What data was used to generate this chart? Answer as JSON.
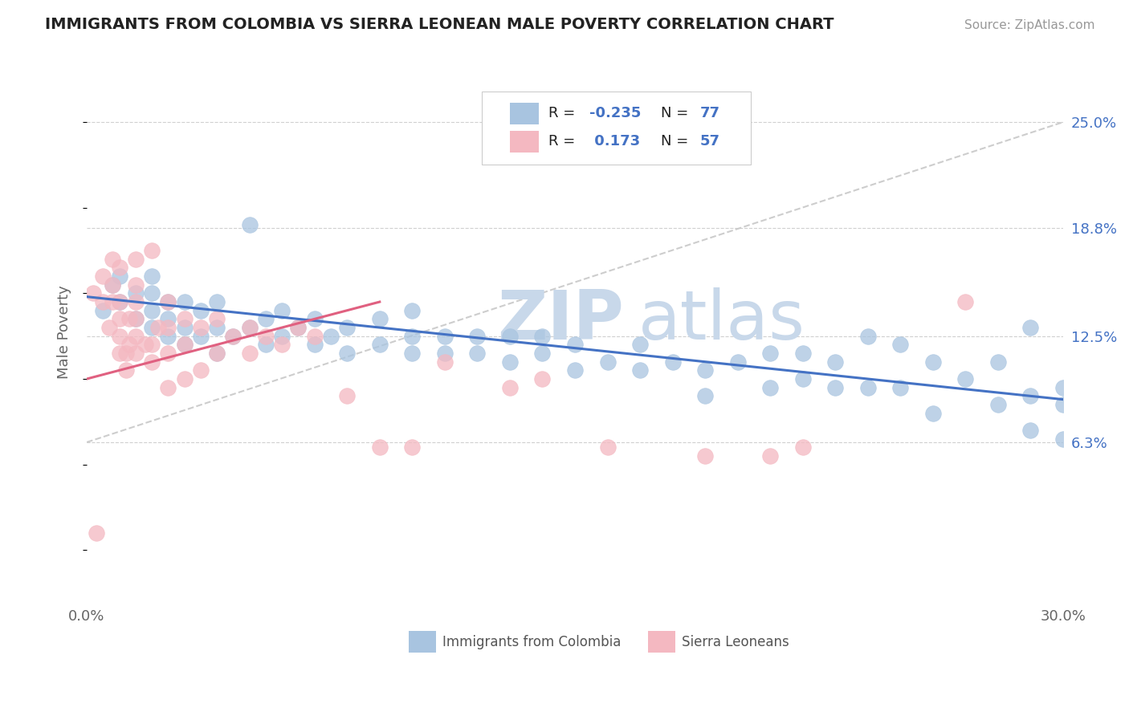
{
  "title": "IMMIGRANTS FROM COLOMBIA VS SIERRA LEONEAN MALE POVERTY CORRELATION CHART",
  "source": "Source: ZipAtlas.com",
  "ylabel": "Male Poverty",
  "xlim": [
    0.0,
    0.3
  ],
  "ylim": [
    -0.03,
    0.285
  ],
  "ytick_values": [
    0.063,
    0.125,
    0.188,
    0.25
  ],
  "ytick_labels": [
    "6.3%",
    "12.5%",
    "18.8%",
    "25.0%"
  ],
  "colombia_color": "#a8c4e0",
  "sierraleone_color": "#f4b8c1",
  "colombia_line_color": "#4472c4",
  "sierraleone_line_color": "#e06080",
  "trendline_dashed_color": "#c8c8c8",
  "colombia_x": [
    0.005,
    0.008,
    0.01,
    0.01,
    0.015,
    0.015,
    0.02,
    0.02,
    0.02,
    0.02,
    0.025,
    0.025,
    0.025,
    0.03,
    0.03,
    0.03,
    0.035,
    0.035,
    0.04,
    0.04,
    0.04,
    0.045,
    0.05,
    0.05,
    0.055,
    0.055,
    0.06,
    0.06,
    0.065,
    0.07,
    0.07,
    0.075,
    0.08,
    0.08,
    0.09,
    0.09,
    0.1,
    0.1,
    0.1,
    0.11,
    0.11,
    0.12,
    0.12,
    0.13,
    0.13,
    0.14,
    0.14,
    0.15,
    0.15,
    0.16,
    0.17,
    0.17,
    0.18,
    0.19,
    0.19,
    0.2,
    0.21,
    0.21,
    0.22,
    0.22,
    0.23,
    0.23,
    0.24,
    0.24,
    0.25,
    0.25,
    0.26,
    0.26,
    0.27,
    0.28,
    0.28,
    0.29,
    0.29,
    0.29,
    0.3,
    0.3,
    0.3
  ],
  "colombia_y": [
    0.14,
    0.155,
    0.145,
    0.16,
    0.135,
    0.15,
    0.13,
    0.14,
    0.15,
    0.16,
    0.125,
    0.135,
    0.145,
    0.12,
    0.13,
    0.145,
    0.125,
    0.14,
    0.115,
    0.13,
    0.145,
    0.125,
    0.19,
    0.13,
    0.12,
    0.135,
    0.125,
    0.14,
    0.13,
    0.12,
    0.135,
    0.125,
    0.115,
    0.13,
    0.12,
    0.135,
    0.115,
    0.125,
    0.14,
    0.115,
    0.125,
    0.115,
    0.125,
    0.11,
    0.125,
    0.115,
    0.125,
    0.105,
    0.12,
    0.11,
    0.105,
    0.12,
    0.11,
    0.09,
    0.105,
    0.11,
    0.095,
    0.115,
    0.1,
    0.115,
    0.095,
    0.11,
    0.095,
    0.125,
    0.095,
    0.12,
    0.08,
    0.11,
    0.1,
    0.085,
    0.11,
    0.07,
    0.09,
    0.13,
    0.065,
    0.085,
    0.095
  ],
  "sierraleone_x": [
    0.002,
    0.003,
    0.005,
    0.005,
    0.007,
    0.008,
    0.008,
    0.008,
    0.01,
    0.01,
    0.01,
    0.01,
    0.01,
    0.012,
    0.012,
    0.013,
    0.013,
    0.015,
    0.015,
    0.015,
    0.015,
    0.015,
    0.015,
    0.018,
    0.02,
    0.02,
    0.02,
    0.022,
    0.025,
    0.025,
    0.025,
    0.025,
    0.03,
    0.03,
    0.03,
    0.035,
    0.035,
    0.04,
    0.04,
    0.045,
    0.05,
    0.05,
    0.055,
    0.06,
    0.065,
    0.07,
    0.08,
    0.09,
    0.1,
    0.11,
    0.13,
    0.14,
    0.16,
    0.19,
    0.21,
    0.22,
    0.27
  ],
  "sierraleone_y": [
    0.15,
    0.01,
    0.145,
    0.16,
    0.13,
    0.145,
    0.155,
    0.17,
    0.115,
    0.125,
    0.135,
    0.145,
    0.165,
    0.105,
    0.115,
    0.12,
    0.135,
    0.115,
    0.125,
    0.135,
    0.145,
    0.155,
    0.17,
    0.12,
    0.11,
    0.12,
    0.175,
    0.13,
    0.095,
    0.115,
    0.13,
    0.145,
    0.1,
    0.12,
    0.135,
    0.105,
    0.13,
    0.115,
    0.135,
    0.125,
    0.115,
    0.13,
    0.125,
    0.12,
    0.13,
    0.125,
    0.09,
    0.06,
    0.06,
    0.11,
    0.095,
    0.1,
    0.06,
    0.055,
    0.055,
    0.06,
    0.145
  ],
  "legend_label1": "Immigrants from Colombia",
  "legend_label2": "Sierra Leoneans"
}
